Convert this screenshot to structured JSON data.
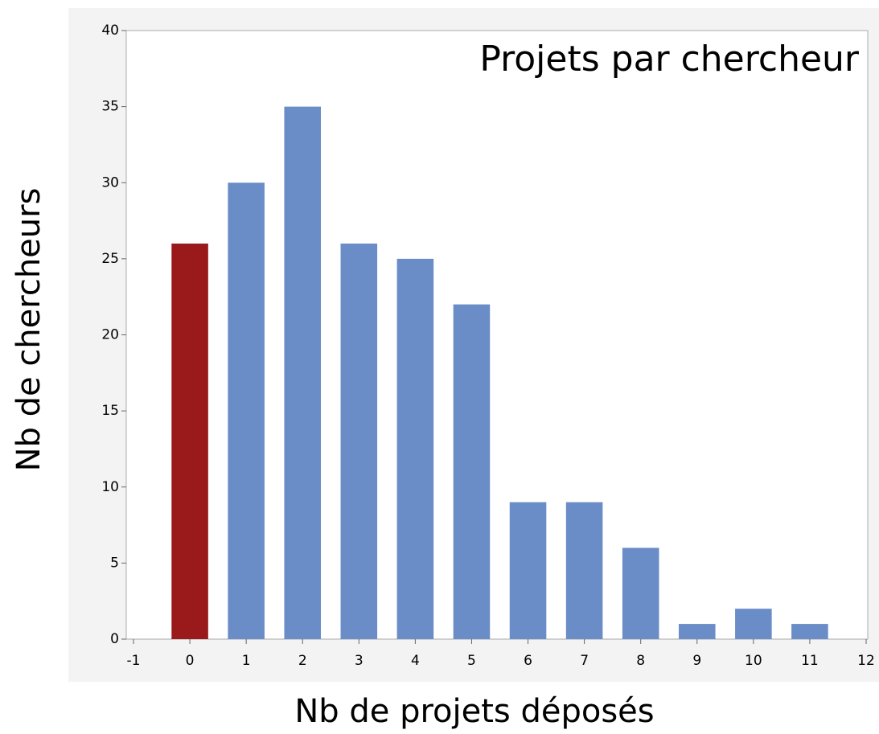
{
  "chart_data": {
    "type": "bar",
    "title": "Projets par chercheur",
    "x_label": "Nb de projets déposés",
    "y_label": "Nb de chercheurs",
    "x": [
      0,
      1,
      2,
      3,
      4,
      5,
      6,
      7,
      8,
      9,
      10,
      11
    ],
    "values": [
      26,
      30,
      35,
      26,
      25,
      22,
      9,
      9,
      6,
      1,
      2,
      1
    ],
    "colors": [
      "#9a1a1c",
      "#6a8cc7",
      "#6a8cc7",
      "#6a8cc7",
      "#6a8cc7",
      "#6a8cc7",
      "#6a8cc7",
      "#6a8cc7",
      "#6a8cc7",
      "#6a8cc7",
      "#6a8cc7",
      "#6a8cc7"
    ],
    "title_color": "#5b2a90",
    "xlim": [
      -1,
      12
    ],
    "xticks": [
      -1,
      0,
      1,
      2,
      3,
      4,
      5,
      6,
      7,
      8,
      9,
      10,
      11,
      12
    ],
    "ylim": [
      0,
      40
    ],
    "yticks": [
      0,
      5,
      10,
      15,
      20,
      25,
      30,
      35,
      40
    ],
    "grid": false
  }
}
